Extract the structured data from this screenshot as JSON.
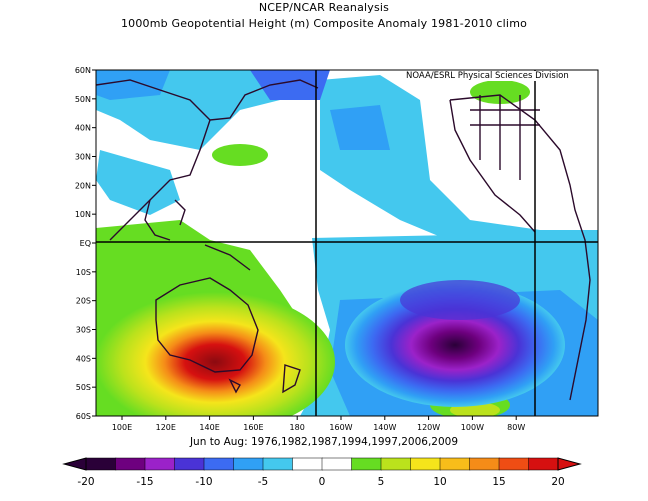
{
  "title_line1": "NCEP/NCAR Reanalysis",
  "title_line2": "1000mb Geopotential Height (m) Composite Anomaly 1981-2010 climo",
  "credit": "NOAA/ESRL Physical Sciences Division",
  "caption": "Jun to Aug: 1976,1982,1987,1994,1997,2006,2009",
  "lat_ticks": [
    "60N",
    "50N",
    "40N",
    "30N",
    "20N",
    "10N",
    "EQ",
    "10S",
    "20S",
    "30S",
    "40S",
    "50S",
    "60S"
  ],
  "lon_ticks": [
    "100E",
    "120E",
    "140E",
    "160E",
    "180",
    "160W",
    "140W",
    "120W",
    "100W",
    "80W"
  ],
  "colorbar": {
    "labels": [
      "-20",
      "-15",
      "-10",
      "-5",
      "0",
      "5",
      "10",
      "15",
      "20"
    ],
    "colors": [
      "#2a0038",
      "#6e007f",
      "#9b22c9",
      "#4a33d6",
      "#3c6bf2",
      "#30a0f5",
      "#44c8ee",
      "#ffffff",
      "#ffffff",
      "#66dd22",
      "#bbe21c",
      "#f5e51b",
      "#f8bd1a",
      "#f58c18",
      "#ef4d14",
      "#d61010"
    ]
  }
}
